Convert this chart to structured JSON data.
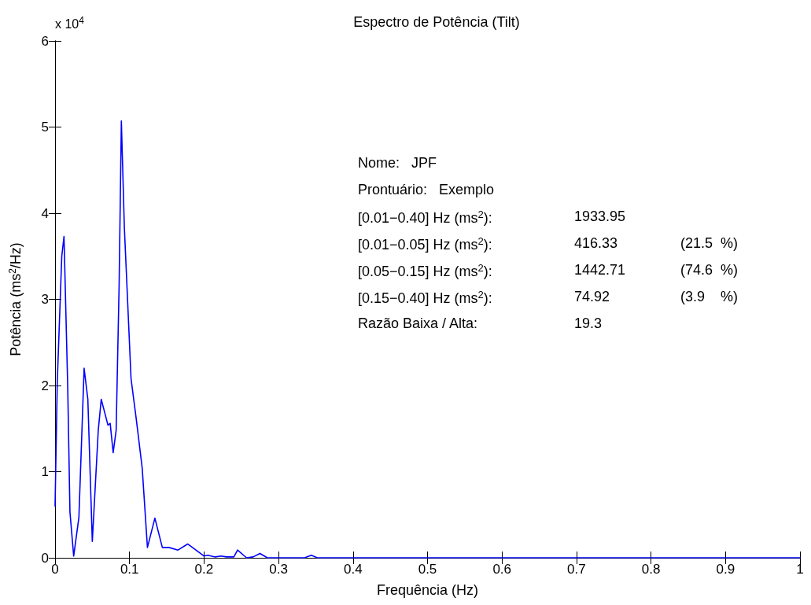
{
  "chart_data": {
    "type": "line",
    "title": "Espectro de Potência (Tilt)",
    "xlabel": "Frequência (Hz)",
    "ylabel": "Potência (ms$^{2}$/Hz)",
    "x": [
      0,
      0.003,
      0.009,
      0.012,
      0.017,
      0.02,
      0.025,
      0.032,
      0.039,
      0.044,
      0.05,
      0.058,
      0.062,
      0.071,
      0.074,
      0.078,
      0.082,
      0.086,
      0.089,
      0.093,
      0.102,
      0.109,
      0.117,
      0.124,
      0.134,
      0.144,
      0.153,
      0.165,
      0.178,
      0.2,
      0.205,
      0.215,
      0.223,
      0.23,
      0.24,
      0.245,
      0.257,
      0.266,
      0.275,
      0.285,
      0.335,
      0.344,
      0.352,
      0.5,
      0.7,
      1
    ],
    "series": [
      {
        "color": "#0000ff",
        "values": [
          0.6,
          2.05,
          3.5,
          3.73,
          1.98,
          0.53,
          0.02,
          0.47,
          2.2,
          1.84,
          0.19,
          1.48,
          1.84,
          1.54,
          1.56,
          1.22,
          1.48,
          3.17,
          5.07,
          3.84,
          2.08,
          1.61,
          1.04,
          0.12,
          0.46,
          0.12,
          0.12,
          0.09,
          0.16,
          0.02,
          0.03,
          0.01,
          0.02,
          0.01,
          0.01,
          0.09,
          0,
          0.01,
          0.05,
          0,
          0,
          0.03,
          0,
          0,
          0,
          0
        ]
      }
    ],
    "xlim": [
      0,
      1
    ],
    "xticks": [
      0,
      0.1,
      0.2,
      0.3,
      0.4,
      0.5,
      0.6,
      0.7,
      0.8,
      0.9,
      1
    ],
    "ylim": [
      0,
      6
    ],
    "yticks": [
      0,
      1,
      2,
      3,
      4,
      5,
      6
    ],
    "grid": false,
    "marker": "none",
    "line_style": "solid",
    "annotations": [
      "x 10$^{4}$",
      "Nome:   JPF",
      "Prontuário:   Exemplo",
      "[0.01−0.40] Hz (ms$^{2}$):\t1933.95",
      "[0.01−0.05] Hz (ms$^{2}$):\t416.33\t(21.5  %)",
      "[0.05−0.15] Hz (ms$^{2}$):\t1442.71\t(74.6  %)",
      "[0.15−0.40] Hz (ms$^{2}$):\t74.92\t(3.9    %)",
      "Razão Baixa / Alta:\t19.3"
    ]
  }
}
